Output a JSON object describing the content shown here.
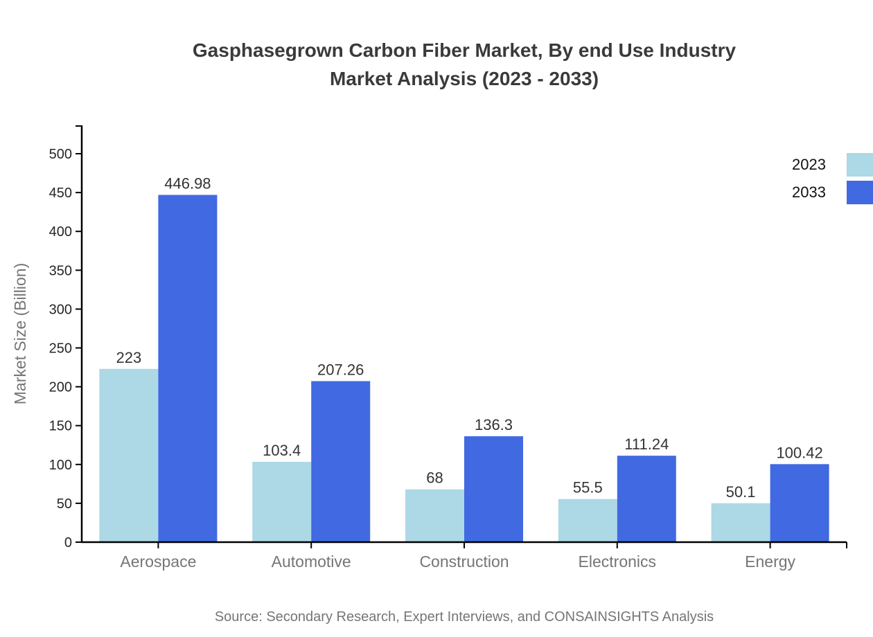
{
  "title": {
    "line1": "Gasphasegrown Carbon Fiber Market, By end Use Industry",
    "line2": "Market Analysis (2023 - 2033)"
  },
  "source": {
    "text": "Source: Secondary Research, Expert Interviews, and CONSAINSIGHTS Analysis"
  },
  "chart_data": {
    "type": "bar",
    "categories": [
      "Aerospace",
      "Automotive",
      "Construction",
      "Electronics",
      "Energy"
    ],
    "series": [
      {
        "name": "2023",
        "color": "#add8e6",
        "values": [
          223,
          103.4,
          68,
          55.5,
          50.1
        ]
      },
      {
        "name": "2033",
        "color": "#4169e1",
        "values": [
          446.98,
          207.26,
          136.3,
          111.24,
          100.42
        ]
      }
    ],
    "xlabel": "",
    "ylabel": "Market Size (Billion)",
    "ylim": [
      0,
      535
    ],
    "yticks": [
      0,
      50,
      100,
      150,
      200,
      250,
      300,
      350,
      400,
      450,
      500
    ],
    "grid": false,
    "legend_position": "top-right",
    "value_labels": true
  },
  "colors": {
    "axis": "#000000",
    "tick_label": "#262626",
    "muted_label": "#757575",
    "title_text": "#3a3a3a",
    "value_label": "#333333",
    "legend_label": "#111111",
    "background": "#ffffff"
  }
}
